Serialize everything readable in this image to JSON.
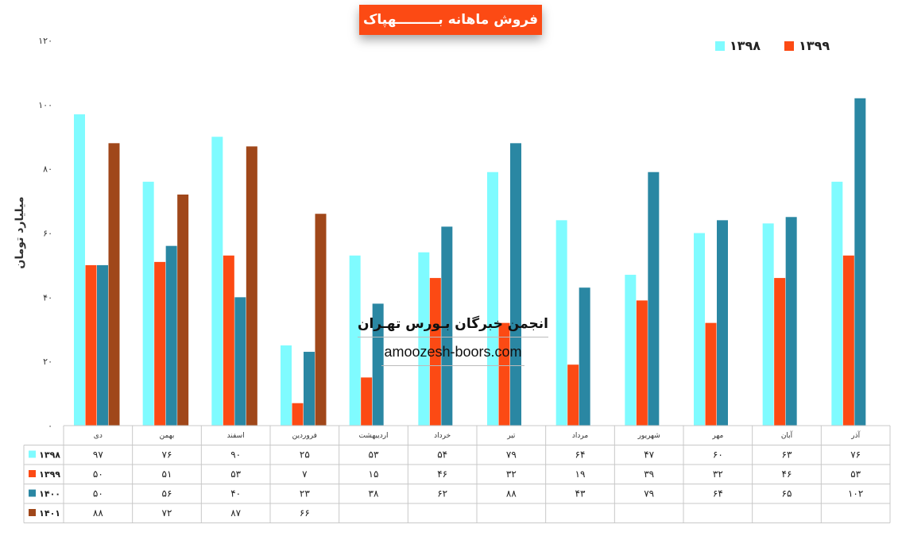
{
  "chart_data": {
    "type": "bar",
    "title": "فروش ماهانه بـــــــــهپاک",
    "ylabel": "میلیارد تومان",
    "ylim": [
      0,
      120
    ],
    "yticks": [
      "۰",
      "۲۰",
      "۴۰",
      "۶۰",
      "۸۰",
      "۱۰۰",
      "۱۲۰"
    ],
    "ytick_values": [
      0,
      20,
      40,
      60,
      80,
      100,
      120
    ],
    "grid": false,
    "legend_position": "top-right",
    "legend": [
      {
        "name": "۱۳۹۸",
        "color": "#7ffbff"
      },
      {
        "name": "۱۳۹۹",
        "color": "#fc4a14"
      }
    ],
    "categories": [
      "دی",
      "بهمن",
      "اسفند",
      "فروردین",
      "اردیبهشت",
      "خرداد",
      "تیر",
      "مرداد",
      "شهریور",
      "مهر",
      "آبان",
      "آذر"
    ],
    "series": [
      {
        "name": "۱۳۹۸",
        "color": "#7ffbff",
        "values": [
          97,
          76,
          90,
          25,
          53,
          54,
          79,
          64,
          47,
          60,
          63,
          76
        ],
        "labels": [
          "۹۷",
          "۷۶",
          "۹۰",
          "۲۵",
          "۵۳",
          "۵۴",
          "۷۹",
          "۶۴",
          "۴۷",
          "۶۰",
          "۶۳",
          "۷۶"
        ]
      },
      {
        "name": "۱۳۹۹",
        "color": "#fc4a14",
        "values": [
          50,
          51,
          53,
          7,
          15,
          46,
          32,
          19,
          39,
          32,
          46,
          53
        ],
        "labels": [
          "۵۰",
          "۵۱",
          "۵۳",
          "۷",
          "۱۵",
          "۴۶",
          "۳۲",
          "۱۹",
          "۳۹",
          "۳۲",
          "۴۶",
          "۵۳"
        ]
      },
      {
        "name": "۱۴۰۰",
        "color": "#2a87a3",
        "values": [
          50,
          56,
          40,
          23,
          38,
          62,
          88,
          43,
          79,
          64,
          65,
          102
        ],
        "labels": [
          "۵۰",
          "۵۶",
          "۴۰",
          "۲۳",
          "۳۸",
          "۶۲",
          "۸۸",
          "۴۳",
          "۷۹",
          "۶۴",
          "۶۵",
          "۱۰۲"
        ]
      },
      {
        "name": "۱۴۰۱",
        "color": "#a0471a",
        "values": [
          88,
          72,
          87,
          66,
          null,
          null,
          null,
          null,
          null,
          null,
          null,
          null
        ],
        "labels": [
          "۸۸",
          "۷۲",
          "۸۷",
          "۶۶",
          "",
          "",
          "",
          "",
          "",
          "",
          "",
          ""
        ]
      }
    ]
  },
  "watermark": {
    "title": "انجمن خبرگان بـورس تهـران",
    "url": "amoozesh-boors.com"
  }
}
